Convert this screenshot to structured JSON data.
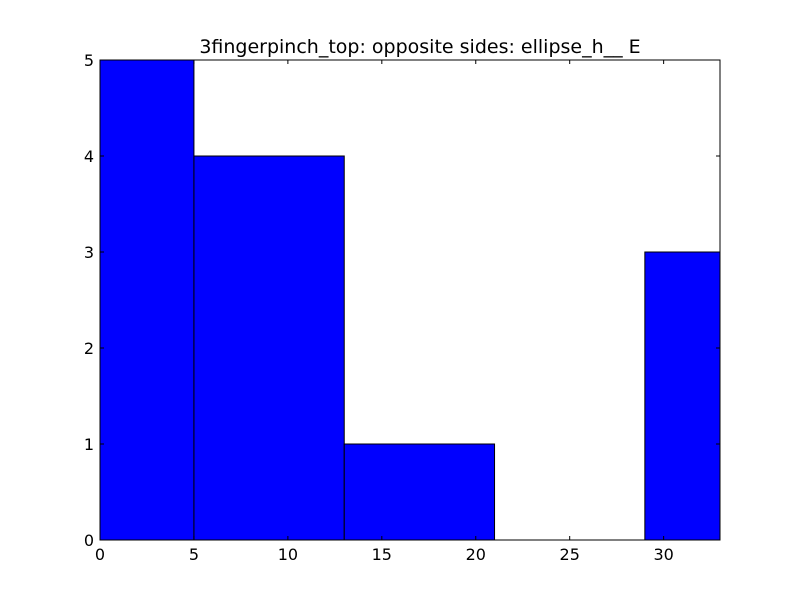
{
  "chart_data": {
    "type": "bar",
    "title": "3fingerpinch_top: opposite sides: ellipse_h__ E",
    "xlabel": "",
    "ylabel": "",
    "xlim": [
      0,
      33
    ],
    "ylim": [
      0,
      5
    ],
    "xticks": [
      0,
      5,
      10,
      15,
      20,
      25,
      30
    ],
    "xtick_labels": [
      "0",
      "5",
      "10",
      "15",
      "20",
      "25",
      "30"
    ],
    "yticks": [
      0,
      1,
      2,
      3,
      4,
      5
    ],
    "ytick_labels": [
      "0",
      "1",
      "2",
      "3",
      "4",
      "5"
    ],
    "grid": false,
    "bar_color": "#0000ff",
    "bars": [
      {
        "x0": 0,
        "x1": 5,
        "value": 5
      },
      {
        "x0": 5,
        "x1": 13,
        "value": 4
      },
      {
        "x0": 13,
        "x1": 21,
        "value": 1
      },
      {
        "x0": 21,
        "x1": 29,
        "value": 0
      },
      {
        "x0": 29,
        "x1": 37,
        "value": 3
      }
    ]
  }
}
